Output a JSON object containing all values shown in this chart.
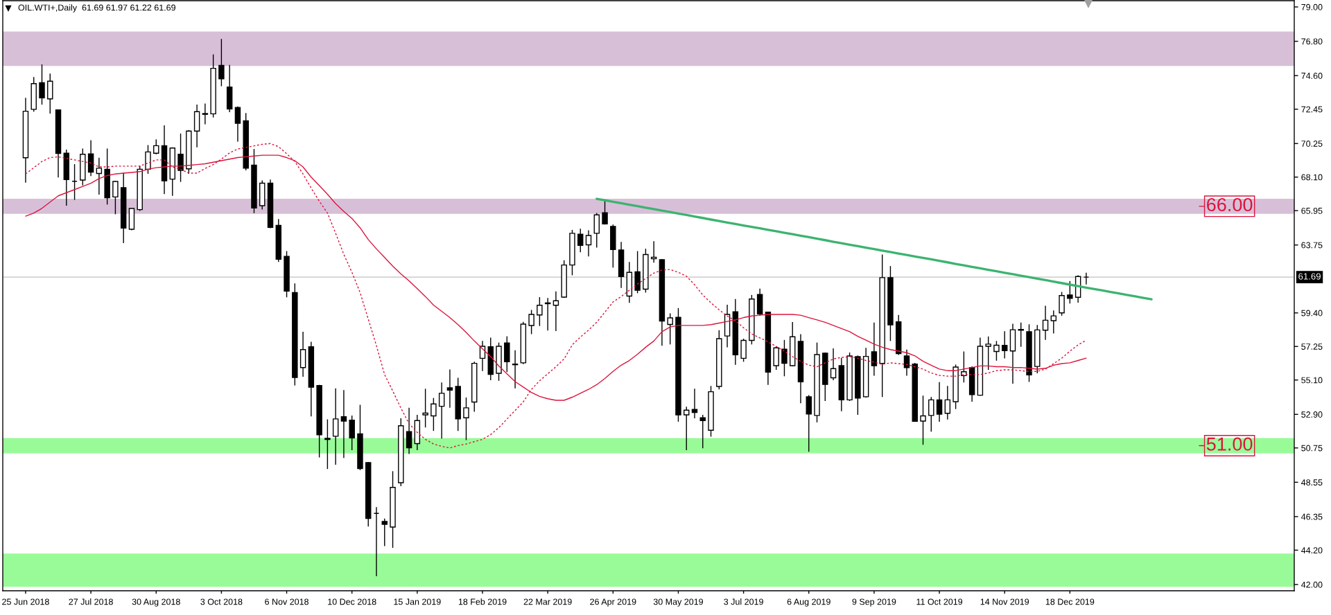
{
  "chart_data": {
    "type": "candlestick",
    "title": "OIL.WTI+,Daily  61.69 61.97 61.22 61.69",
    "categories": [
      "25 Jun 2018",
      null,
      null,
      null,
      null,
      null,
      null,
      null,
      "27 Jul 2018",
      null,
      null,
      null,
      null,
      null,
      null,
      null,
      "30 Aug 2018",
      null,
      null,
      null,
      null,
      null,
      null,
      null,
      "3 Oct 2018",
      null,
      null,
      null,
      null,
      null,
      null,
      null,
      "6 Nov 2018",
      null,
      null,
      null,
      null,
      null,
      null,
      null,
      "10 Dec 2018",
      null,
      null,
      null,
      null,
      null,
      null,
      null,
      "15 Jan 2019",
      null,
      null,
      null,
      null,
      null,
      null,
      null,
      "18 Feb 2019",
      null,
      null,
      null,
      null,
      null,
      null,
      null,
      "22 Mar 2019",
      null,
      null,
      null,
      null,
      null,
      null,
      null,
      "26 Apr 2019",
      null,
      null,
      null,
      null,
      null,
      null,
      null,
      "30 May 2019",
      null,
      null,
      null,
      null,
      null,
      null,
      null,
      "3 Jul 2019",
      null,
      null,
      null,
      null,
      null,
      null,
      null,
      "6 Aug 2019",
      null,
      null,
      null,
      null,
      null,
      null,
      null,
      "9 Sep 2019",
      null,
      null,
      null,
      null,
      null,
      null,
      null,
      "11 Oct 2019",
      null,
      null,
      null,
      null,
      null,
      null,
      null,
      "14 Nov 2019",
      null,
      null,
      null,
      null,
      null,
      null,
      null,
      "18 Dec 2019",
      null,
      null,
      null,
      null,
      null,
      null,
      null,
      null,
      null,
      null,
      null,
      null,
      null,
      null,
      null,
      null,
      null,
      null,
      null,
      null,
      null,
      null,
      null,
      null,
      null,
      null,
      null
    ],
    "series": [
      {
        "color": "#000000",
        "ohlc": [
          [
            69.34,
            73.18,
            67.74,
            72.32
          ],
          [
            72.44,
            74.51,
            72.29,
            74.09
          ],
          [
            74.14,
            75.32,
            72.74,
            73.18
          ],
          [
            73.11,
            74.73,
            72.17,
            74.24
          ],
          [
            72.4,
            72.4,
            68.08,
            69.62
          ],
          [
            69.63,
            69.86,
            66.27,
            67.94
          ],
          [
            67.83,
            68.93,
            66.64,
            67.83
          ],
          [
            67.91,
            69.93,
            67.57,
            69.56
          ],
          [
            69.59,
            70.46,
            68.16,
            68.42
          ],
          [
            68.33,
            69.34,
            66.98,
            68.67
          ],
          [
            68.6,
            69.93,
            66.34,
            66.78
          ],
          [
            66.83,
            67.86,
            65.72,
            67.82
          ],
          [
            67.42,
            68.38,
            63.87,
            64.83
          ],
          [
            64.76,
            66.09,
            64.69,
            66.09
          ],
          [
            66.02,
            68.82,
            65.94,
            68.6
          ],
          [
            68.6,
            70.15,
            68.31,
            69.71
          ],
          [
            69.63,
            70.52,
            69.56,
            70.11
          ],
          [
            70.11,
            71.41,
            67.01,
            67.86
          ],
          [
            67.97,
            70.0,
            66.9,
            69.96
          ],
          [
            69.56,
            70.89,
            67.79,
            68.53
          ],
          [
            68.63,
            71.11,
            68.31,
            71.05
          ],
          [
            71.05,
            72.74,
            70.0,
            72.29
          ],
          [
            72.12,
            72.81,
            71.48,
            72.17
          ],
          [
            72.15,
            75.96,
            71.92,
            75.07
          ],
          [
            75.25,
            76.95,
            73.92,
            74.39
          ],
          [
            73.87,
            75.29,
            72.26,
            72.47
          ],
          [
            72.56,
            72.62,
            70.37,
            71.55
          ],
          [
            71.7,
            72.2,
            68.53,
            68.67
          ],
          [
            68.87,
            69.9,
            65.79,
            66.12
          ],
          [
            66.27,
            67.89,
            66.02,
            67.71
          ],
          [
            67.71,
            67.94,
            64.83,
            64.88
          ],
          [
            65.01,
            65.41,
            62.66,
            62.84
          ],
          [
            63.02,
            63.36,
            60.4,
            60.8
          ],
          [
            60.7,
            61.29,
            54.75,
            55.26
          ],
          [
            55.9,
            58.19,
            55.31,
            57.05
          ],
          [
            57.23,
            57.55,
            52.77,
            54.64
          ],
          [
            54.75,
            54.79,
            50.14,
            51.59
          ],
          [
            51.36,
            52.58,
            49.4,
            51.29
          ],
          [
            51.5,
            54.57,
            49.67,
            52.61
          ],
          [
            52.75,
            54.45,
            50.11,
            52.47
          ],
          [
            52.53,
            52.83,
            50.61,
            51.39
          ],
          [
            51.65,
            53.51,
            49.33,
            49.43
          ],
          [
            49.81,
            49.84,
            45.71,
            46.23
          ],
          [
            46.56,
            46.96,
            42.53,
            46.56
          ],
          [
            46.04,
            46.23,
            44.46,
            45.86
          ],
          [
            45.68,
            49.26,
            44.35,
            48.22
          ],
          [
            48.52,
            52.65,
            48.3,
            52.17
          ],
          [
            51.8,
            53.32,
            50.36,
            50.76
          ],
          [
            51.03,
            52.87,
            50.61,
            52.5
          ],
          [
            52.87,
            54.54,
            52.06,
            52.98
          ],
          [
            52.8,
            53.95,
            51.84,
            53.57
          ],
          [
            53.42,
            54.94,
            51.35,
            54.25
          ],
          [
            54.6,
            55.78,
            53.32,
            54.45
          ],
          [
            54.69,
            55.24,
            51.84,
            52.61
          ],
          [
            52.68,
            53.98,
            51.25,
            53.32
          ],
          [
            53.69,
            56.27,
            53.07,
            56.17
          ],
          [
            56.49,
            57.6,
            55.68,
            57.26
          ],
          [
            57.23,
            57.82,
            55.09,
            55.46
          ],
          [
            55.53,
            57.5,
            55.05,
            57.26
          ],
          [
            57.48,
            57.9,
            55.61,
            56.27
          ],
          [
            56.08,
            57.01,
            54.57,
            56.12
          ],
          [
            56.2,
            58.83,
            56.12,
            58.68
          ],
          [
            58.59,
            59.59,
            58.04,
            59.3
          ],
          [
            59.27,
            60.41,
            58.56,
            59.89
          ],
          [
            59.99,
            60.36,
            58.27,
            60.04
          ],
          [
            59.89,
            60.78,
            58.24,
            60.18
          ],
          [
            60.41,
            62.77,
            60.36,
            62.47
          ],
          [
            62.47,
            64.72,
            61.81,
            64.5
          ],
          [
            64.44,
            64.79,
            63.28,
            63.73
          ],
          [
            63.76,
            64.69,
            63.02,
            64.36
          ],
          [
            64.5,
            65.8,
            63.58,
            65.68
          ],
          [
            65.82,
            66.61,
            65.06,
            65.1
          ],
          [
            64.94,
            65.06,
            62.3,
            63.46
          ],
          [
            63.43,
            63.95,
            61.0,
            61.73
          ],
          [
            60.48,
            62.66,
            60.04,
            62.0
          ],
          [
            62.03,
            63.36,
            60.66,
            60.85
          ],
          [
            60.92,
            63.51,
            60.7,
            63.14
          ],
          [
            62.87,
            63.99,
            62.62,
            62.96
          ],
          [
            62.81,
            62.84,
            57.3,
            58.88
          ],
          [
            58.66,
            59.37,
            57.38,
            59.08
          ],
          [
            59.12,
            59.71,
            52.43,
            52.87
          ],
          [
            52.87,
            53.39,
            50.61,
            53.17
          ],
          [
            53.21,
            54.54,
            52.65,
            53.02
          ],
          [
            52.68,
            52.87,
            50.73,
            52.5
          ],
          [
            51.88,
            54.72,
            51.47,
            54.35
          ],
          [
            54.69,
            58.29,
            54.5,
            57.75
          ],
          [
            57.92,
            59.92,
            57.2,
            59.3
          ],
          [
            59.47,
            60.29,
            56.08,
            56.71
          ],
          [
            56.49,
            57.75,
            56.27,
            57.64
          ],
          [
            57.64,
            60.55,
            57.38,
            60.29
          ],
          [
            60.58,
            60.95,
            59.22,
            59.33
          ],
          [
            59.45,
            59.45,
            54.79,
            55.61
          ],
          [
            56.02,
            57.26,
            55.75,
            57.16
          ],
          [
            57.08,
            57.67,
            55.34,
            56.17
          ],
          [
            56.02,
            58.81,
            55.98,
            57.87
          ],
          [
            57.57,
            58.04,
            53.61,
            54.99
          ],
          [
            54.03,
            54.13,
            50.51,
            52.92
          ],
          [
            52.83,
            57.5,
            52.39,
            56.73
          ],
          [
            56.82,
            56.86,
            53.76,
            54.82
          ],
          [
            55.24,
            57.13,
            55.09,
            55.83
          ],
          [
            56.02,
            56.52,
            53.1,
            53.83
          ],
          [
            53.83,
            56.86,
            53.76,
            56.64
          ],
          [
            56.6,
            56.67,
            52.87,
            53.94
          ],
          [
            54.03,
            57.16,
            53.98,
            56.61
          ],
          [
            56.91,
            58.78,
            55.38,
            56.02
          ],
          [
            56.17,
            63.14,
            54.01,
            61.66
          ],
          [
            61.66,
            62.4,
            57.6,
            58.63
          ],
          [
            58.83,
            59.27,
            56.71,
            56.79
          ],
          [
            56.64,
            57.05,
            55.38,
            55.9
          ],
          [
            56.12,
            56.2,
            52.43,
            52.46
          ],
          [
            52.47,
            54.1,
            50.95,
            52.8
          ],
          [
            52.83,
            54.01,
            51.79,
            53.83
          ],
          [
            53.83,
            54.97,
            52.43,
            52.91
          ],
          [
            52.97,
            54.72,
            52.57,
            53.83
          ],
          [
            53.71,
            56.09,
            53.24,
            55.93
          ],
          [
            55.38,
            56.93,
            54.94,
            55.63
          ],
          [
            55.9,
            55.97,
            53.71,
            54.16
          ],
          [
            54.13,
            57.82,
            54.1,
            57.26
          ],
          [
            57.26,
            57.89,
            55.75,
            57.4
          ],
          [
            56.93,
            57.6,
            56.34,
            57.33
          ],
          [
            57.32,
            58.23,
            56.49,
            56.98
          ],
          [
            56.96,
            58.7,
            54.86,
            58.32
          ],
          [
            58.29,
            58.78,
            57.23,
            58.34
          ],
          [
            58.19,
            58.67,
            54.98,
            55.43
          ],
          [
            55.97,
            58.63,
            55.53,
            58.31
          ],
          [
            58.29,
            59.86,
            57.67,
            58.93
          ],
          [
            58.9,
            59.56,
            58.08,
            59.21
          ],
          [
            59.4,
            60.74,
            59.22,
            60.51
          ],
          [
            60.55,
            61.44,
            60.0,
            60.33
          ],
          [
            60.4,
            61.81,
            60.06,
            61.73
          ],
          [
            61.69,
            61.97,
            61.22,
            61.69
          ],
          null,
          null,
          null,
          null,
          null,
          null,
          null,
          null,
          null,
          null,
          null,
          null,
          null,
          null,
          null,
          null,
          null,
          null,
          null,
          null,
          null,
          null,
          null,
          null,
          null
        ]
      },
      {
        "type": "line",
        "color": "#dc143c",
        "line_style": "solid",
        "values": [
          65.6,
          65.8,
          66.1,
          66.5,
          66.9,
          67.1,
          67.3,
          67.5,
          67.7,
          68.0,
          68.2,
          68.3,
          68.35,
          68.4,
          68.45,
          68.6,
          68.7,
          68.75,
          68.8,
          68.8,
          68.85,
          68.9,
          68.95,
          69.05,
          69.15,
          69.25,
          69.35,
          69.4,
          69.45,
          69.5,
          69.5,
          69.5,
          69.35,
          69.15,
          68.75,
          68.1,
          67.55,
          67.0,
          66.4,
          65.9,
          65.45,
          64.85,
          64.1,
          63.5,
          62.95,
          62.4,
          61.9,
          61.45,
          60.95,
          60.45,
          59.9,
          59.5,
          59.1,
          58.65,
          58.15,
          57.6,
          57.1,
          56.6,
          56.0,
          55.5,
          55.0,
          54.65,
          54.3,
          54.05,
          53.9,
          53.8,
          53.8,
          54.0,
          54.25,
          54.5,
          54.8,
          55.2,
          55.65,
          56.05,
          56.35,
          56.75,
          57.2,
          57.6,
          58.2,
          58.5,
          58.6,
          58.6,
          58.6,
          58.6,
          58.65,
          58.75,
          58.85,
          58.95,
          59.1,
          59.2,
          59.25,
          59.3,
          59.3,
          59.3,
          59.3,
          59.25,
          59.1,
          58.95,
          58.8,
          58.6,
          58.4,
          58.2,
          57.9,
          57.65,
          57.4,
          57.2,
          57.05,
          56.95,
          56.85,
          56.65,
          56.3,
          56.05,
          55.8,
          55.7,
          55.7,
          55.8,
          55.9,
          56.0,
          56.0,
          55.95,
          55.95,
          55.9,
          55.9,
          55.85,
          55.8,
          55.85,
          56.05,
          56.15,
          56.2,
          56.35,
          56.5,
          null,
          null,
          null,
          null,
          null,
          null,
          null,
          null,
          null,
          null,
          null,
          null,
          null,
          null,
          null,
          null,
          null,
          null,
          null,
          null,
          null,
          null,
          null,
          null,
          null
        ]
      },
      {
        "type": "line",
        "color": "#dc143c",
        "line_style": "dotted",
        "values": [
          68.3,
          68.7,
          69.1,
          69.35,
          69.4,
          69.3,
          69.2,
          69.1,
          69.0,
          68.75,
          68.75,
          68.8,
          68.8,
          68.8,
          68.8,
          69.0,
          69.2,
          69.2,
          68.75,
          68.6,
          68.35,
          68.35,
          68.65,
          68.9,
          69.25,
          69.65,
          69.9,
          70.0,
          70.1,
          70.2,
          70.25,
          70.05,
          69.6,
          69.1,
          68.3,
          67.4,
          66.55,
          65.8,
          64.5,
          63.15,
          62.0,
          60.7,
          59.0,
          57.3,
          55.45,
          54.4,
          53.3,
          52.3,
          51.75,
          51.3,
          51.0,
          50.85,
          50.75,
          50.9,
          51.0,
          51.15,
          51.3,
          51.6,
          52.05,
          52.6,
          53.15,
          53.7,
          54.5,
          55.05,
          55.5,
          55.95,
          56.45,
          57.35,
          57.85,
          58.3,
          58.8,
          59.45,
          60.1,
          60.45,
          60.85,
          61.25,
          61.6,
          61.95,
          62.15,
          62.18,
          62.0,
          61.75,
          61.2,
          60.55,
          60.05,
          59.6,
          59.2,
          58.9,
          58.45,
          58.05,
          57.8,
          57.55,
          57.25,
          56.95,
          56.6,
          56.3,
          56.05,
          55.95,
          56.2,
          56.45,
          56.55,
          56.6,
          56.5,
          56.35,
          56.25,
          56.1,
          56.2,
          56.15,
          56.1,
          55.95,
          55.8,
          55.55,
          55.4,
          55.35,
          55.35,
          55.45,
          55.45,
          55.45,
          55.55,
          55.7,
          55.75,
          55.75,
          55.7,
          55.65,
          55.65,
          55.8,
          56.15,
          56.5,
          56.95,
          57.35,
          57.65,
          null,
          null,
          null,
          null,
          null,
          null,
          null,
          null,
          null,
          null,
          null,
          null,
          null,
          null,
          null,
          null,
          null,
          null,
          null,
          null,
          null,
          null,
          null,
          null,
          null
        ]
      },
      {
        "type": "line",
        "color": "#3cb371",
        "line_style": "solid",
        "values": [
          null,
          null,
          null,
          null,
          null,
          null,
          null,
          null,
          null,
          null,
          null,
          null,
          null,
          null,
          null,
          null,
          null,
          null,
          null,
          null,
          null,
          null,
          null,
          null,
          null,
          null,
          null,
          null,
          null,
          null,
          null,
          null,
          null,
          null,
          null,
          null,
          null,
          null,
          null,
          null,
          null,
          null,
          null,
          null,
          null,
          null,
          null,
          null,
          null,
          null,
          null,
          null,
          null,
          null,
          null,
          null,
          null,
          null,
          null,
          null,
          null,
          null,
          null,
          null,
          null,
          null,
          null,
          null,
          null,
          null,
          66.71,
          66.62,
          66.52,
          66.43,
          66.33,
          66.24,
          66.14,
          66.05,
          65.95,
          65.86,
          65.76,
          65.67,
          65.57,
          65.48,
          65.38,
          65.29,
          65.19,
          65.1,
          65.0,
          64.91,
          64.82,
          64.72,
          64.63,
          64.53,
          64.44,
          64.34,
          64.25,
          64.15,
          64.06,
          63.96,
          63.87,
          63.77,
          63.68,
          63.58,
          63.49,
          63.39,
          63.3,
          63.2,
          63.11,
          63.01,
          62.92,
          62.83,
          62.73,
          62.64,
          62.54,
          62.45,
          62.35,
          62.26,
          62.16,
          62.07,
          61.97,
          61.88,
          61.78,
          61.69,
          61.59,
          61.5,
          61.4,
          61.31,
          61.21,
          61.12,
          61.02,
          60.93,
          60.84,
          60.74,
          60.65,
          60.55,
          60.46,
          60.36,
          60.27,
          null,
          null,
          null,
          null,
          null,
          null,
          null,
          null,
          null,
          null,
          null,
          null,
          null,
          null,
          null,
          null,
          null
        ]
      }
    ],
    "ylim": [
      41.6,
      79.4
    ],
    "yticks": [
      {
        "value": 79,
        "label": "79.00"
      },
      {
        "value": 76.8,
        "label": "76.80"
      },
      {
        "value": 74.6,
        "label": "74.60"
      },
      {
        "value": 72.45,
        "label": "72.45"
      },
      {
        "value": 70.25,
        "label": "70.25"
      },
      {
        "value": 68.1,
        "label": "68.10"
      },
      {
        "value": 65.95,
        "label": "65.95"
      },
      {
        "value": 63.75,
        "label": "63.75"
      },
      {
        "value": 59.4,
        "label": "59.40"
      },
      {
        "value": 57.25,
        "label": "57.25"
      },
      {
        "value": 55.1,
        "label": "55.10"
      },
      {
        "value": 52.9,
        "label": "52.90"
      },
      {
        "value": 50.75,
        "label": "50.75"
      },
      {
        "value": 48.55,
        "label": "48.55"
      },
      {
        "value": 46.35,
        "label": "46.35"
      },
      {
        "value": 44.2,
        "label": "44.20"
      },
      {
        "value": 42,
        "label": "42.00"
      }
    ],
    "bands": [
      {
        "axis": "y",
        "from": 75.22,
        "to": 77.43,
        "color": "#d8bfd8"
      },
      {
        "axis": "y",
        "from": 65.75,
        "to": 66.71,
        "color": "#d8bfd8",
        "label": "66.00"
      },
      {
        "axis": "y",
        "from": 50.41,
        "to": 51.38,
        "color": "#98fb98",
        "label": "51.00"
      },
      {
        "axis": "y",
        "from": 41.85,
        "to": 43.98,
        "color": "#98fb98"
      }
    ],
    "ref_lines": [
      {
        "axis": "y",
        "value": 61.69,
        "label": "61.69",
        "color": "#c0c0c0"
      }
    ]
  }
}
